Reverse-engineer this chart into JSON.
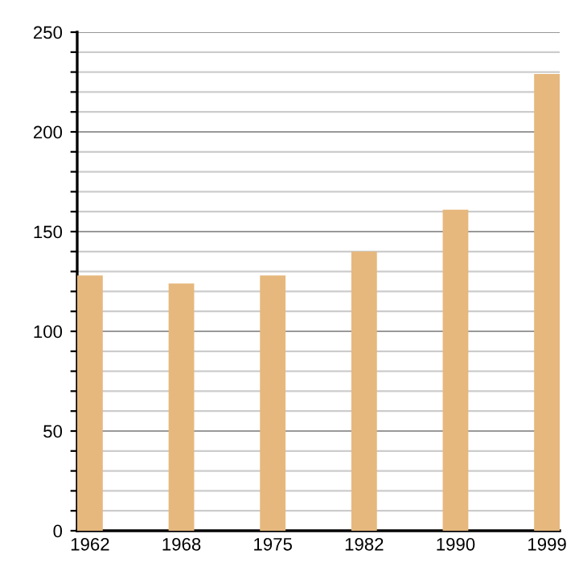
{
  "chart_data": {
    "type": "bar",
    "categories": [
      "1962",
      "1968",
      "1975",
      "1982",
      "1990",
      "1999"
    ],
    "values": [
      128,
      124,
      128,
      140,
      161,
      229
    ],
    "color": "#e6b87d",
    "ylim": [
      0,
      250
    ],
    "yticks": [
      0,
      {
        "value": 10,
        "label": null
      },
      {
        "value": 20,
        "label": null
      },
      {
        "value": 30,
        "label": null
      },
      {
        "value": 40,
        "label": null
      },
      50,
      {
        "value": 60,
        "label": null
      },
      {
        "value": 70,
        "label": null
      },
      {
        "value": 80,
        "label": null
      },
      {
        "value": 90,
        "label": null
      },
      100,
      {
        "value": 110,
        "label": null
      },
      {
        "value": 120,
        "label": null
      },
      {
        "value": 130,
        "label": null
      },
      {
        "value": 140,
        "label": null
      },
      150,
      {
        "value": 160,
        "label": null
      },
      {
        "value": 170,
        "label": null
      },
      {
        "value": 180,
        "label": null
      },
      {
        "value": 190,
        "label": null
      },
      200,
      {
        "value": 210,
        "label": null
      },
      {
        "value": 220,
        "label": null
      },
      {
        "value": 230,
        "label": null
      },
      {
        "value": 240,
        "label": null
      },
      250
    ],
    "grid": "y"
  }
}
